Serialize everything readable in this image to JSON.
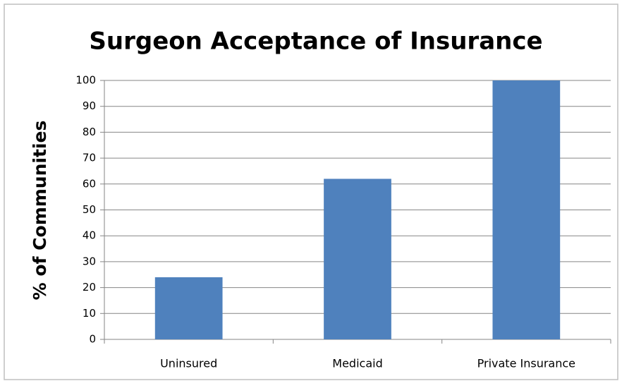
{
  "chart_data": {
    "type": "bar",
    "title": "Surgeon Acceptance of Insurance",
    "y_label": "% of Communities",
    "categories": [
      "Uninsured",
      "Medicaid",
      "Private Insurance"
    ],
    "values": [
      24,
      62,
      100
    ],
    "color": "#4f81bd",
    "ylim": [
      0,
      100
    ],
    "yticks": [
      0,
      10,
      20,
      30,
      40,
      50,
      60,
      70,
      80,
      90,
      100
    ],
    "grid": true
  }
}
